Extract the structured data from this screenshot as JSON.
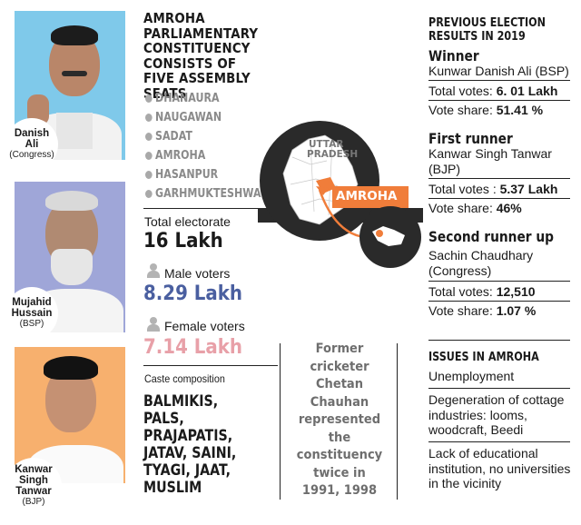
{
  "constituency_title": "AMROHA PARLIAMENTARY CONSTITUENCY CONSISTS OF FIVE ASSEMBLY SEATS",
  "assembly_seats": [
    "DHANAURA",
    "NAUGAWAN",
    "SADAT",
    "AMROHA",
    "HASANPUR",
    "GARHMUKTESHWAR"
  ],
  "candidates": [
    {
      "name_line1": "Danish",
      "name_line2": "Ali",
      "name_line3": "",
      "party": "(Congress)",
      "bg": "#7fc9ea"
    },
    {
      "name_line1": "Mujahid",
      "name_line2": "Hussain",
      "name_line3": "",
      "party": "(BSP)",
      "bg": "#9fa6d8"
    },
    {
      "name_line1": "Kanwar",
      "name_line2": "Singh",
      "name_line3": "Tanwar",
      "party": "(BJP)",
      "bg": "#f7b06e"
    }
  ],
  "electorate": {
    "total_label": "Total electorate",
    "total_value": "16 Lakh",
    "male_label": "Male voters",
    "male_value": "8.29 Lakh",
    "male_color": "#4a5fa0",
    "female_label": "Female voters",
    "female_value": "7.14 Lakh",
    "female_color": "#e8a0a8"
  },
  "caste": {
    "label": "Caste composition",
    "lines": [
      "BALMIKIS,",
      "PALS,",
      "PRAJAPATIS,",
      "JATAV, SAINI,",
      "TYAGI, JAAT,",
      "MUSLIM"
    ]
  },
  "map": {
    "state_line1": "UTTAR",
    "state_line2": "PRADESH",
    "district": "AMROHA",
    "accent": "#f07d3a"
  },
  "note_lines": [
    "Former",
    "cricketer",
    "Chetan",
    "Chauhan",
    "represented",
    "the",
    "constituency",
    "twice in",
    "1991, 1998"
  ],
  "previous": {
    "title_line1": "PREVIOUS ELECTION",
    "title_line2": "RESULTS IN 2019",
    "winner": {
      "heading": "Winner",
      "name": "Kunwar Danish Ali (BSP)",
      "votes_label": "Total votes: ",
      "votes": "6. 01 Lakh",
      "share_label": "Vote share: ",
      "share": "51.41 %"
    },
    "first": {
      "heading": "First runner",
      "name_line1": "Kanwar Singh Tanwar",
      "name_line2": "(BJP)",
      "votes_label": "Total votes : ",
      "votes": "5.37 Lakh",
      "share_label": "Vote share: ",
      "share": "46%"
    },
    "second": {
      "heading": "Second runner up",
      "name_line1": "Sachin Chaudhary",
      "name_line2": "(Congress)",
      "votes_label": "Total votes: ",
      "votes": "12,510",
      "share_label": "Vote share: ",
      "share": "1.07 %"
    }
  },
  "issues": {
    "title": "ISSUES IN AMROHA",
    "items": [
      {
        "l1": "Unemployment",
        "l2": "",
        "l3": ""
      },
      {
        "l1": "Degeneration of cottage",
        "l2": "industries: looms,",
        "l3": "woodcraft, Beedi"
      },
      {
        "l1": "Lack of educational",
        "l2": "institution, no universities",
        "l3": "in the vicinity"
      }
    ]
  }
}
